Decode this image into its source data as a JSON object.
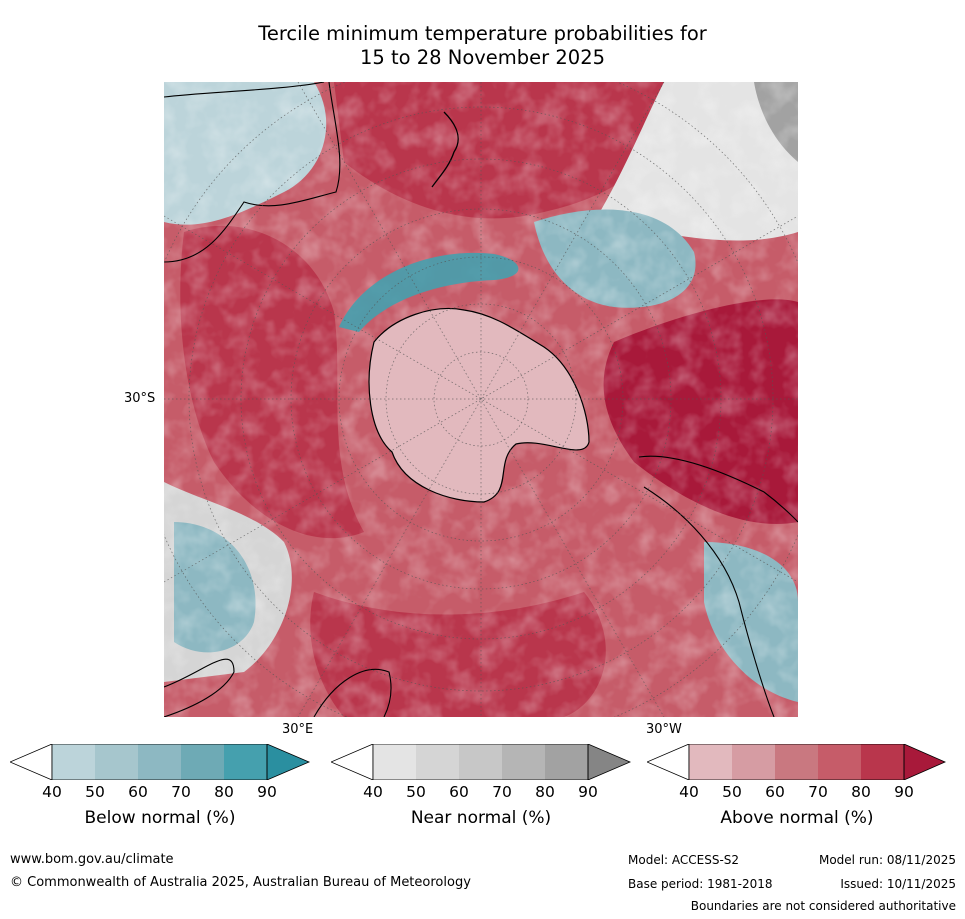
{
  "title_line1": "Tercile minimum temperature probabilities for",
  "title_line2": "15 to 28 November 2025",
  "map": {
    "lat_label": "30°S",
    "lon_label_east": "30°E",
    "lon_label_west": "30°W"
  },
  "colorbars": [
    {
      "name": "below",
      "title": "Below normal (%)",
      "ticks": [
        "40",
        "50",
        "60",
        "70",
        "80",
        "90"
      ],
      "colors": [
        "#bcd4da",
        "#a6c6cd",
        "#8db8c2",
        "#6eaab5",
        "#45a0ae",
        "#2a8fa0"
      ]
    },
    {
      "name": "near",
      "title": "Near normal (%)",
      "ticks": [
        "40",
        "50",
        "60",
        "70",
        "80",
        "90"
      ],
      "colors": [
        "#e4e4e4",
        "#d5d5d5",
        "#c7c7c7",
        "#b5b5b5",
        "#a2a2a2",
        "#858585"
      ]
    },
    {
      "name": "above",
      "title": "Above normal (%)",
      "ticks": [
        "40",
        "50",
        "60",
        "70",
        "80",
        "90"
      ],
      "colors": [
        "#e2b9be",
        "#d69ca3",
        "#c97880",
        "#c65c69",
        "#b9364c",
        "#a8193a"
      ]
    }
  ],
  "footer": {
    "website": "www.bom.gov.au/climate",
    "copyright": "© Commonwealth of Australia 2025, Australian Bureau of Meteorology",
    "model": "Model: ACCESS-S2",
    "base_period": "Base period: 1981-2018",
    "model_run": "Model run: 08/11/2025",
    "issued": "Issued: 10/11/2025",
    "disclaimer": "Boundaries are not considered authoritative"
  }
}
